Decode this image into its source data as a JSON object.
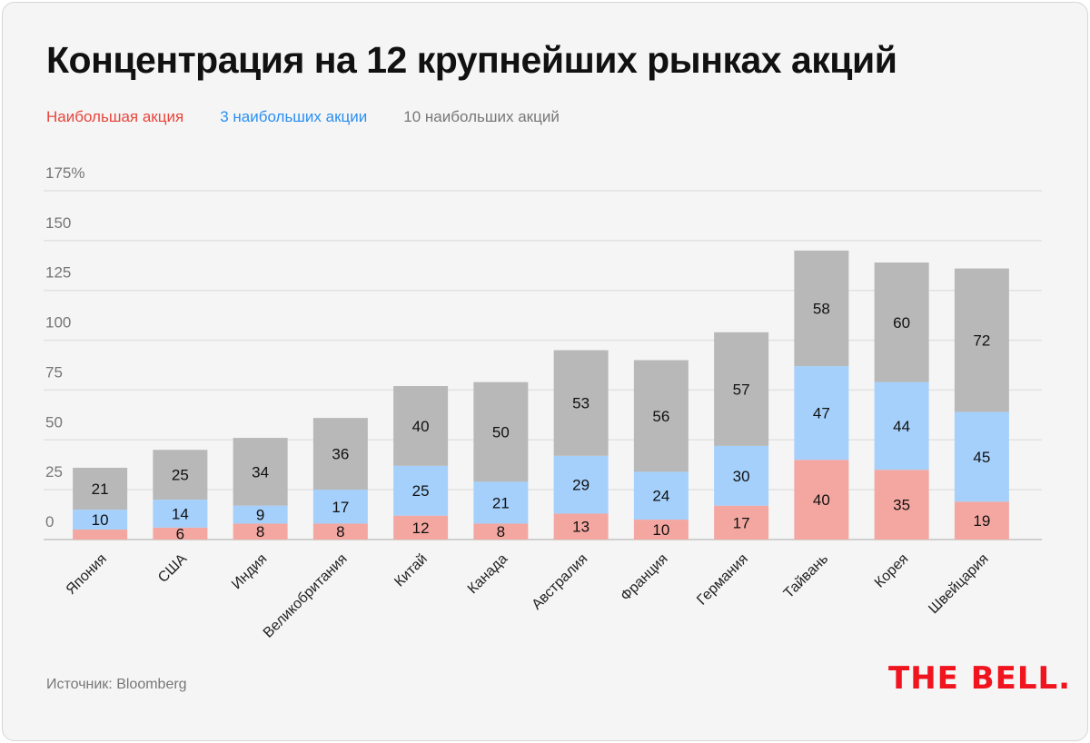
{
  "title": "Концентрация на 12 крупнейших рынках акций",
  "source": "Источник: Bloomberg",
  "logo": "THE BELL.",
  "chart_data": {
    "type": "bar",
    "stacked": true,
    "title": "Концентрация на 12 крупнейших рынках акций",
    "xlabel": "",
    "ylabel": "",
    "ylim": [
      0,
      175
    ],
    "yticks": [
      0,
      25,
      50,
      75,
      100,
      125,
      150,
      175
    ],
    "ytick_labels": [
      "0",
      "25",
      "50",
      "75",
      "100",
      "125",
      "150",
      "175%"
    ],
    "grid": true,
    "legend_position": "top-left",
    "categories": [
      "Япония",
      "США",
      "Индия",
      "Великобритания",
      "Китай",
      "Канада",
      "Австралия",
      "Франция",
      "Германия",
      "Тайвань",
      "Корея",
      "Швейцария"
    ],
    "series": [
      {
        "name": "Наибольшая акция",
        "color": "#f4a7a0",
        "legend_color": "#e8453c",
        "values": [
          5,
          6,
          8,
          8,
          12,
          8,
          13,
          10,
          17,
          40,
          35,
          19
        ],
        "labels": [
          "",
          "6",
          "8",
          "8",
          "12",
          "8",
          "13",
          "10",
          "17",
          "40",
          "35",
          "19"
        ]
      },
      {
        "name": "3 наибольших акции",
        "color": "#a4d0fb",
        "legend_color": "#2b8ff0",
        "values": [
          10,
          14,
          9,
          17,
          25,
          21,
          29,
          24,
          30,
          47,
          44,
          45
        ],
        "labels": [
          "10",
          "14",
          "9",
          "17",
          "25",
          "21",
          "29",
          "24",
          "30",
          "47",
          "44",
          "45"
        ]
      },
      {
        "name": "10 наибольших акций",
        "color": "#b8b8b8",
        "legend_color": "#777777",
        "values": [
          21,
          25,
          34,
          36,
          40,
          50,
          53,
          56,
          57,
          58,
          60,
          72
        ],
        "labels": [
          "21",
          "25",
          "34",
          "36",
          "40",
          "50",
          "53",
          "56",
          "57",
          "58",
          "60",
          "72"
        ]
      }
    ]
  }
}
